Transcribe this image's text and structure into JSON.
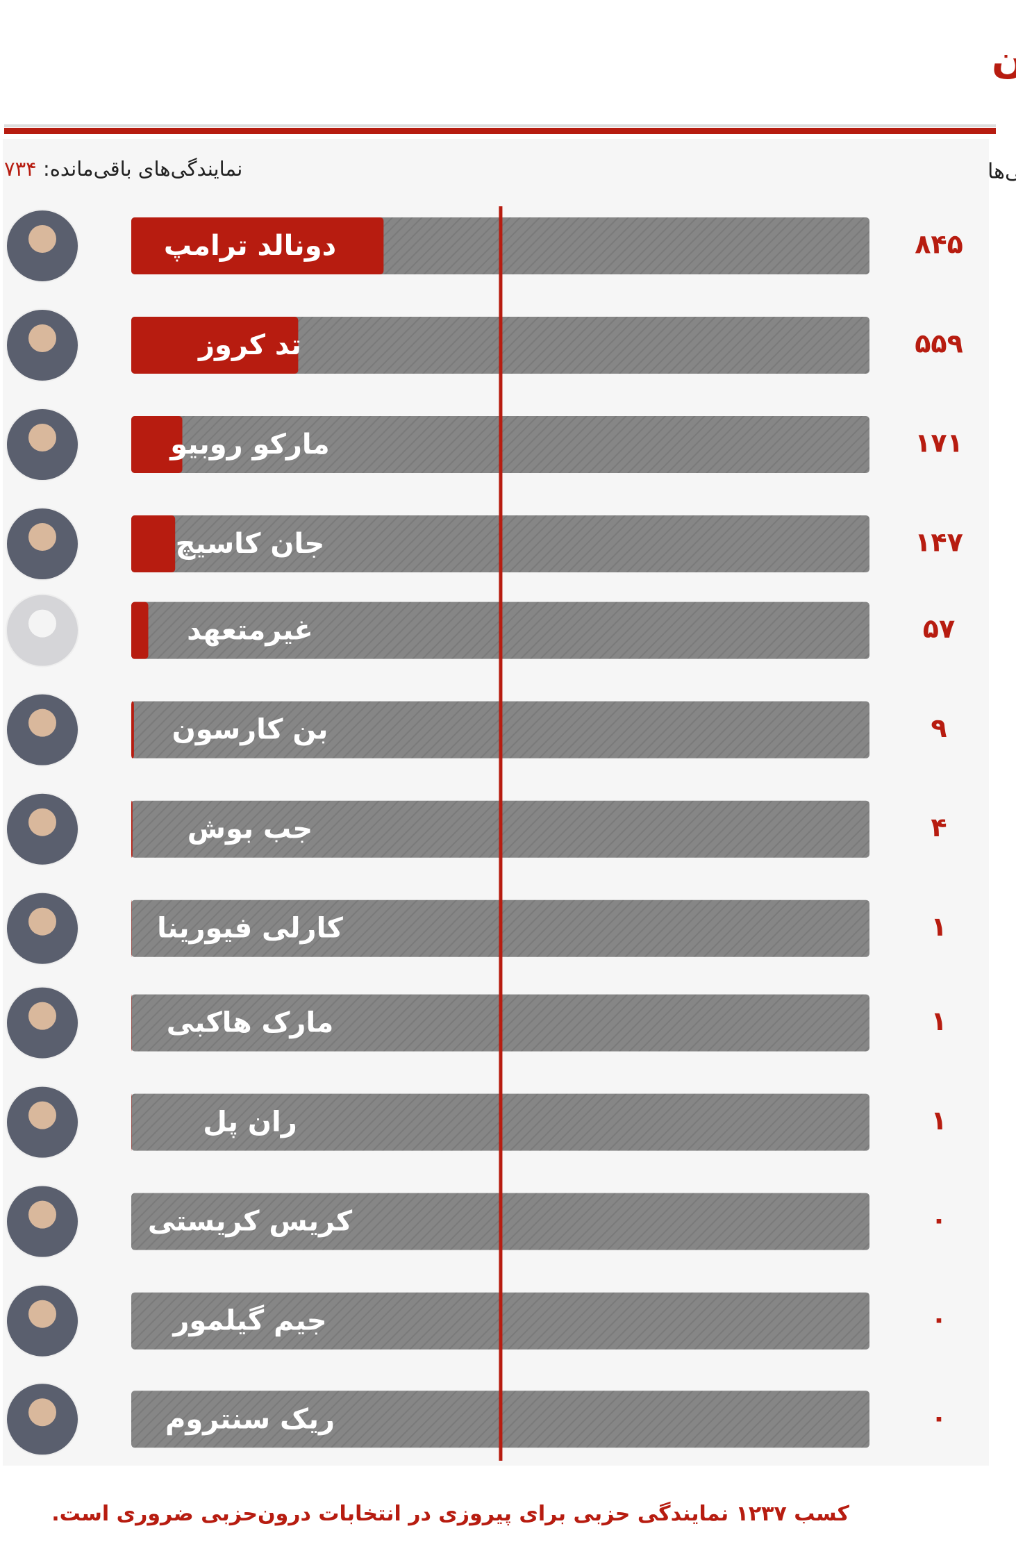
{
  "chart_data": {
    "type": "bar",
    "orientation": "horizontal",
    "title": "جمهوری‌خواهان",
    "value_header": "نمایندگی‌ها",
    "remaining_label": "نمایندگی‌های باقی‌مانده:",
    "remaining": {
      "value": 734,
      "label": "۷۳۴"
    },
    "categories": [
      "دونالد ترامپ",
      "تد کروز",
      "مارکو روبیو",
      "جان کاسیچ",
      "غیرمتعهد",
      "بن کارسون",
      "جب بوش",
      "کارلی فیورینا",
      "مارک هاکبی",
      "ران پل",
      "کریس کریستی",
      "جیم گیلمور",
      "ریک سنتروم"
    ],
    "values": [
      845,
      559,
      171,
      147,
      57,
      9,
      4,
      1,
      1,
      1,
      0,
      0,
      0
    ],
    "value_labels": [
      "۸۴۵",
      "۵۵۹",
      "۱۷۱",
      "۱۴۷",
      "۵۷",
      "۹",
      "۴",
      "۱",
      "۱",
      "۱",
      "۰",
      "۰",
      "۰"
    ],
    "color": "#b71c10",
    "xlim": [
      0,
      2472
    ],
    "footnote": {
      "before": "کسب",
      "majority": {
        "value": 1237,
        "label": "۱۲۳۷"
      },
      "after": "نمایندگی حزبی برای پیروزی در انتخابات درون‌حزبی ضروری است."
    }
  }
}
